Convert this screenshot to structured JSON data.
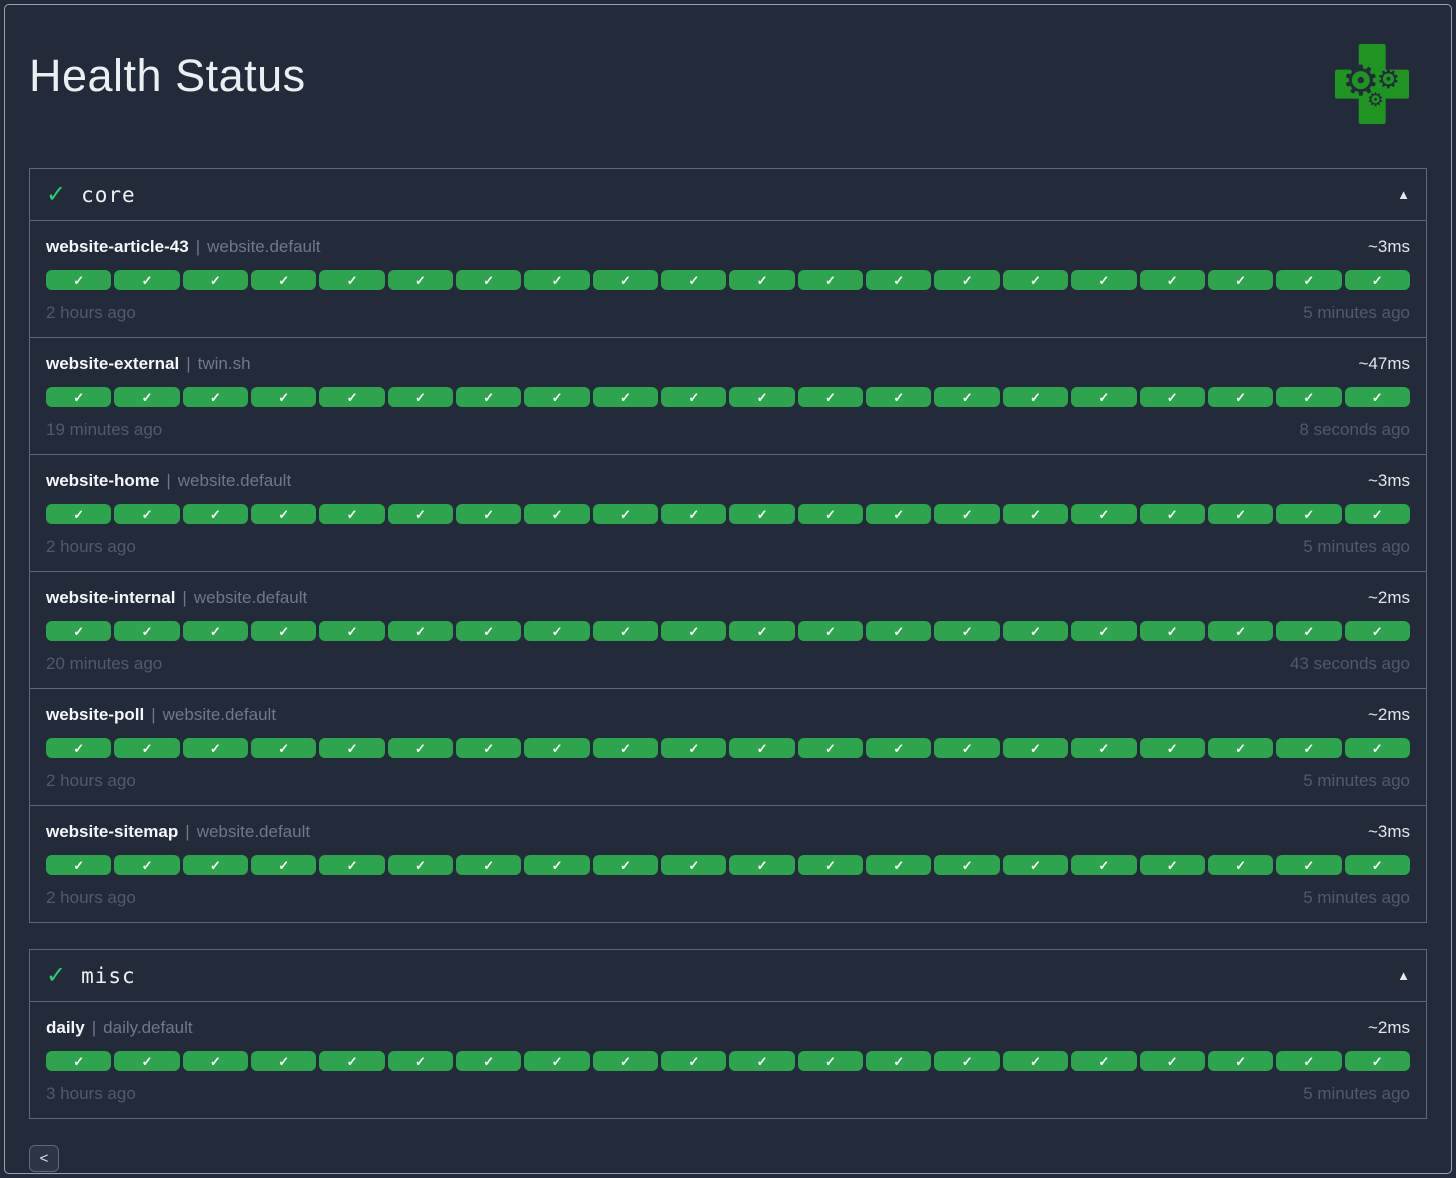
{
  "header": {
    "title": "Health Status"
  },
  "icons": {
    "section_check": "✓",
    "badge_check": "✓",
    "collapse": "▲",
    "gear": "⚙",
    "prev": "<"
  },
  "labels": {
    "group_separator": "|"
  },
  "colors": {
    "background": "#232b3a",
    "frame_border": "#9aa2b0",
    "section_border": "#5f6878",
    "success_badge_green": "#2ea44e",
    "section_check_green": "#2ecc71",
    "logo_cross_green": "#1f9422"
  },
  "sections": [
    {
      "name": "core",
      "status": "success",
      "collapsed": false,
      "endpoints": [
        {
          "name": "website-article-43",
          "group": "website.default",
          "latency": "~3ms",
          "first_check": "2 hours ago",
          "last_check": "5 minutes ago",
          "results": {
            "count": 20,
            "status": "success"
          }
        },
        {
          "name": "website-external",
          "group": "twin.sh",
          "latency": "~47ms",
          "first_check": "19 minutes ago",
          "last_check": "8 seconds ago",
          "results": {
            "count": 20,
            "status": "success"
          }
        },
        {
          "name": "website-home",
          "group": "website.default",
          "latency": "~3ms",
          "first_check": "2 hours ago",
          "last_check": "5 minutes ago",
          "results": {
            "count": 20,
            "status": "success"
          }
        },
        {
          "name": "website-internal",
          "group": "website.default",
          "latency": "~2ms",
          "first_check": "20 minutes ago",
          "last_check": "43 seconds ago",
          "results": {
            "count": 20,
            "status": "success"
          }
        },
        {
          "name": "website-poll",
          "group": "website.default",
          "latency": "~2ms",
          "first_check": "2 hours ago",
          "last_check": "5 minutes ago",
          "results": {
            "count": 20,
            "status": "success"
          }
        },
        {
          "name": "website-sitemap",
          "group": "website.default",
          "latency": "~3ms",
          "first_check": "2 hours ago",
          "last_check": "5 minutes ago",
          "results": {
            "count": 20,
            "status": "success"
          }
        }
      ]
    },
    {
      "name": "misc",
      "status": "success",
      "collapsed": false,
      "endpoints": [
        {
          "name": "daily",
          "group": "daily.default",
          "latency": "~2ms",
          "first_check": "3 hours ago",
          "last_check": "5 minutes ago",
          "results": {
            "count": 20,
            "status": "success"
          }
        }
      ]
    }
  ],
  "pagination": {
    "prev_label": "<"
  }
}
